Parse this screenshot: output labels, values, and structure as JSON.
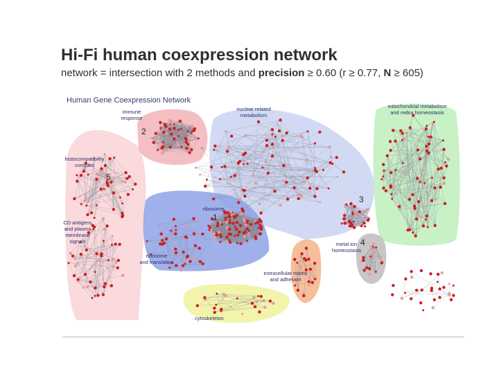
{
  "slide": {
    "title": "Hi-Fi human coexpression network",
    "subtitle_prefix": "network = intersection with 2 methods and ",
    "subtitle_bold1": "precision",
    "subtitle_mid": " ≥ 0.60 (r ≥ 0.77, ",
    "subtitle_bold2": "N",
    "subtitle_suffix": " ≥ 605)"
  },
  "diagram": {
    "heading": "Human Gene Coexpression Network",
    "colors": {
      "node": "#cc1f1f",
      "node_light": "#d9a0a0",
      "edge": "#8a8a9a",
      "immune": "#f3b8bd",
      "histo": "#f9d3d6",
      "nuclear": "#cdd6f2",
      "ribosome": "#8ea2e6",
      "mito": "#c2efc0",
      "metal": "#bdbdbd",
      "ecm": "#f4b890",
      "cyto": "#f1f3a6"
    },
    "clusters": [
      {
        "id": "immune",
        "number": "2",
        "label_lines": [
          "immune",
          "response"
        ]
      },
      {
        "id": "histo",
        "number": "5",
        "label_lines": [
          "histocompatibility",
          "complex"
        ]
      },
      {
        "id": "cd",
        "number": "",
        "label_lines": [
          "CD antigens",
          "and plasma",
          "membrane",
          "signals"
        ]
      },
      {
        "id": "nuclear",
        "number": "",
        "label_lines": [
          "nuclear related",
          "metabolism"
        ]
      },
      {
        "id": "ribosome",
        "number": "1",
        "label_lines": [
          "ribosome"
        ]
      },
      {
        "id": "translation",
        "number": "",
        "label_lines": [
          "ribosome",
          "and translation"
        ]
      },
      {
        "id": "mito",
        "number": "",
        "label_lines": [
          "mitochondrial metabolism",
          "and redox homeostasis"
        ]
      },
      {
        "id": "cluster3",
        "number": "3",
        "label_lines": []
      },
      {
        "id": "metal",
        "number": "4",
        "label_lines": [
          "metal ion",
          "homeostasis"
        ]
      },
      {
        "id": "ecm",
        "number": "",
        "label_lines": [
          "extracellular matrix",
          "and adhesion"
        ]
      },
      {
        "id": "cyto",
        "number": "",
        "label_lines": [
          "cytoskeleton"
        ]
      }
    ]
  }
}
